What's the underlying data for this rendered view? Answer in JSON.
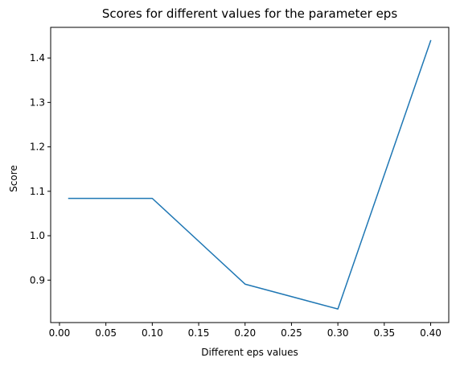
{
  "chart_data": {
    "type": "line",
    "title": "Scores for different values for the parameter eps",
    "xlabel": "Different eps values",
    "ylabel": "Score",
    "xlim": [
      -0.0095,
      0.4195
    ],
    "ylim": [
      0.8045,
      1.469
    ],
    "xticks": [
      0.0,
      0.05,
      0.1,
      0.15,
      0.2,
      0.25,
      0.3,
      0.35,
      0.4
    ],
    "xtick_labels": [
      "0.00",
      "0.05",
      "0.10",
      "0.15",
      "0.20",
      "0.25",
      "0.30",
      "0.35",
      "0.40"
    ],
    "yticks": [
      0.9,
      1.0,
      1.1,
      1.2,
      1.3,
      1.4
    ],
    "ytick_labels": [
      "0.9",
      "1.0",
      "1.1",
      "1.2",
      "1.3",
      "1.4"
    ],
    "grid": false,
    "series": [
      {
        "color": "#1f77b4",
        "x": [
          0.01,
          0.1,
          0.2,
          0.3,
          0.4
        ],
        "y": [
          1.084,
          1.084,
          0.891,
          0.835,
          1.439
        ]
      }
    ]
  }
}
